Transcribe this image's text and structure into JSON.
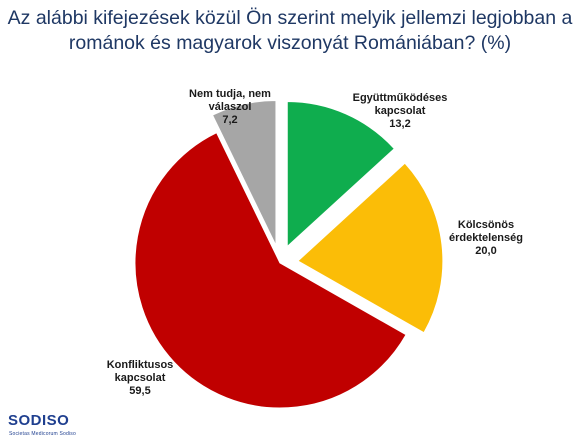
{
  "title_lines": [
    "Az alábbi kifejezések közül Ön szerint melyik jellemzi legjobban a",
    "románok és magyarok viszonyát Romániában? (%)"
  ],
  "chart_data": {
    "type": "pie",
    "title": "Az alábbi kifejezések közül Ön szerint melyik jellemzi legjobban a románok és magyarok viszonyát Romániában? (%)",
    "slices": [
      {
        "label_lines": [
          "Együttműködéses",
          "kapcsolat"
        ],
        "value_text": "13,2",
        "value": 13.2,
        "color": "#0fad4e"
      },
      {
        "label_lines": [
          "Kölcsönös",
          "érdektelenség"
        ],
        "value_text": "20,0",
        "value": 20.0,
        "color": "#fbbd07"
      },
      {
        "label_lines": [
          "Konfliktusos",
          "kapcsolat"
        ],
        "value_text": "59,5",
        "value": 59.5,
        "color": "#c00000"
      },
      {
        "label_lines": [
          "Nem tudja, nem",
          "válaszol"
        ],
        "value_text": "7,2",
        "value": 7.2,
        "color": "#a6a6a6"
      }
    ],
    "start_angle": "12 o'clock",
    "direction": "clockwise",
    "exploded": true,
    "legend": "none"
  },
  "logo": {
    "name": "SODISO",
    "tagline": "Societas Medicorum Sodiso"
  }
}
